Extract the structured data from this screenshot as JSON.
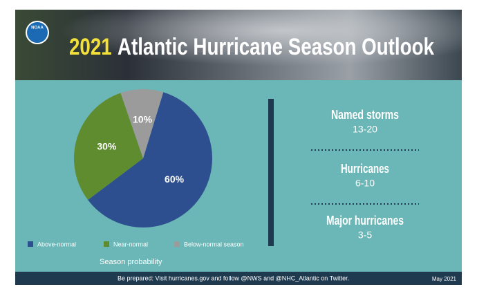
{
  "header": {
    "logo": "NOAA",
    "title_year": "2021",
    "title": "Atlantic Hurricane Season Outlook"
  },
  "chart_data": {
    "type": "pie",
    "x_label": "Season probability",
    "categories": [
      "Above-normal",
      "Near-normal",
      "Below-normal season"
    ],
    "values": [
      60,
      30,
      10
    ],
    "value_labels": [
      "60%",
      "30%",
      "10%"
    ],
    "colors": [
      "#2e4f8f",
      "#5f8c2f",
      "#9b9b9b"
    ]
  },
  "outlook": [
    {
      "label": "Named storms",
      "value": "13-20"
    },
    {
      "label": "Hurricanes",
      "value": "6-10"
    },
    {
      "label": "Major hurricanes",
      "value": "3-5"
    }
  ],
  "footer": {
    "note": "Be prepared: Visit hurricanes.gov and follow @NWS and @NHC_Atlantic on Twitter.",
    "date": "May 2021"
  }
}
